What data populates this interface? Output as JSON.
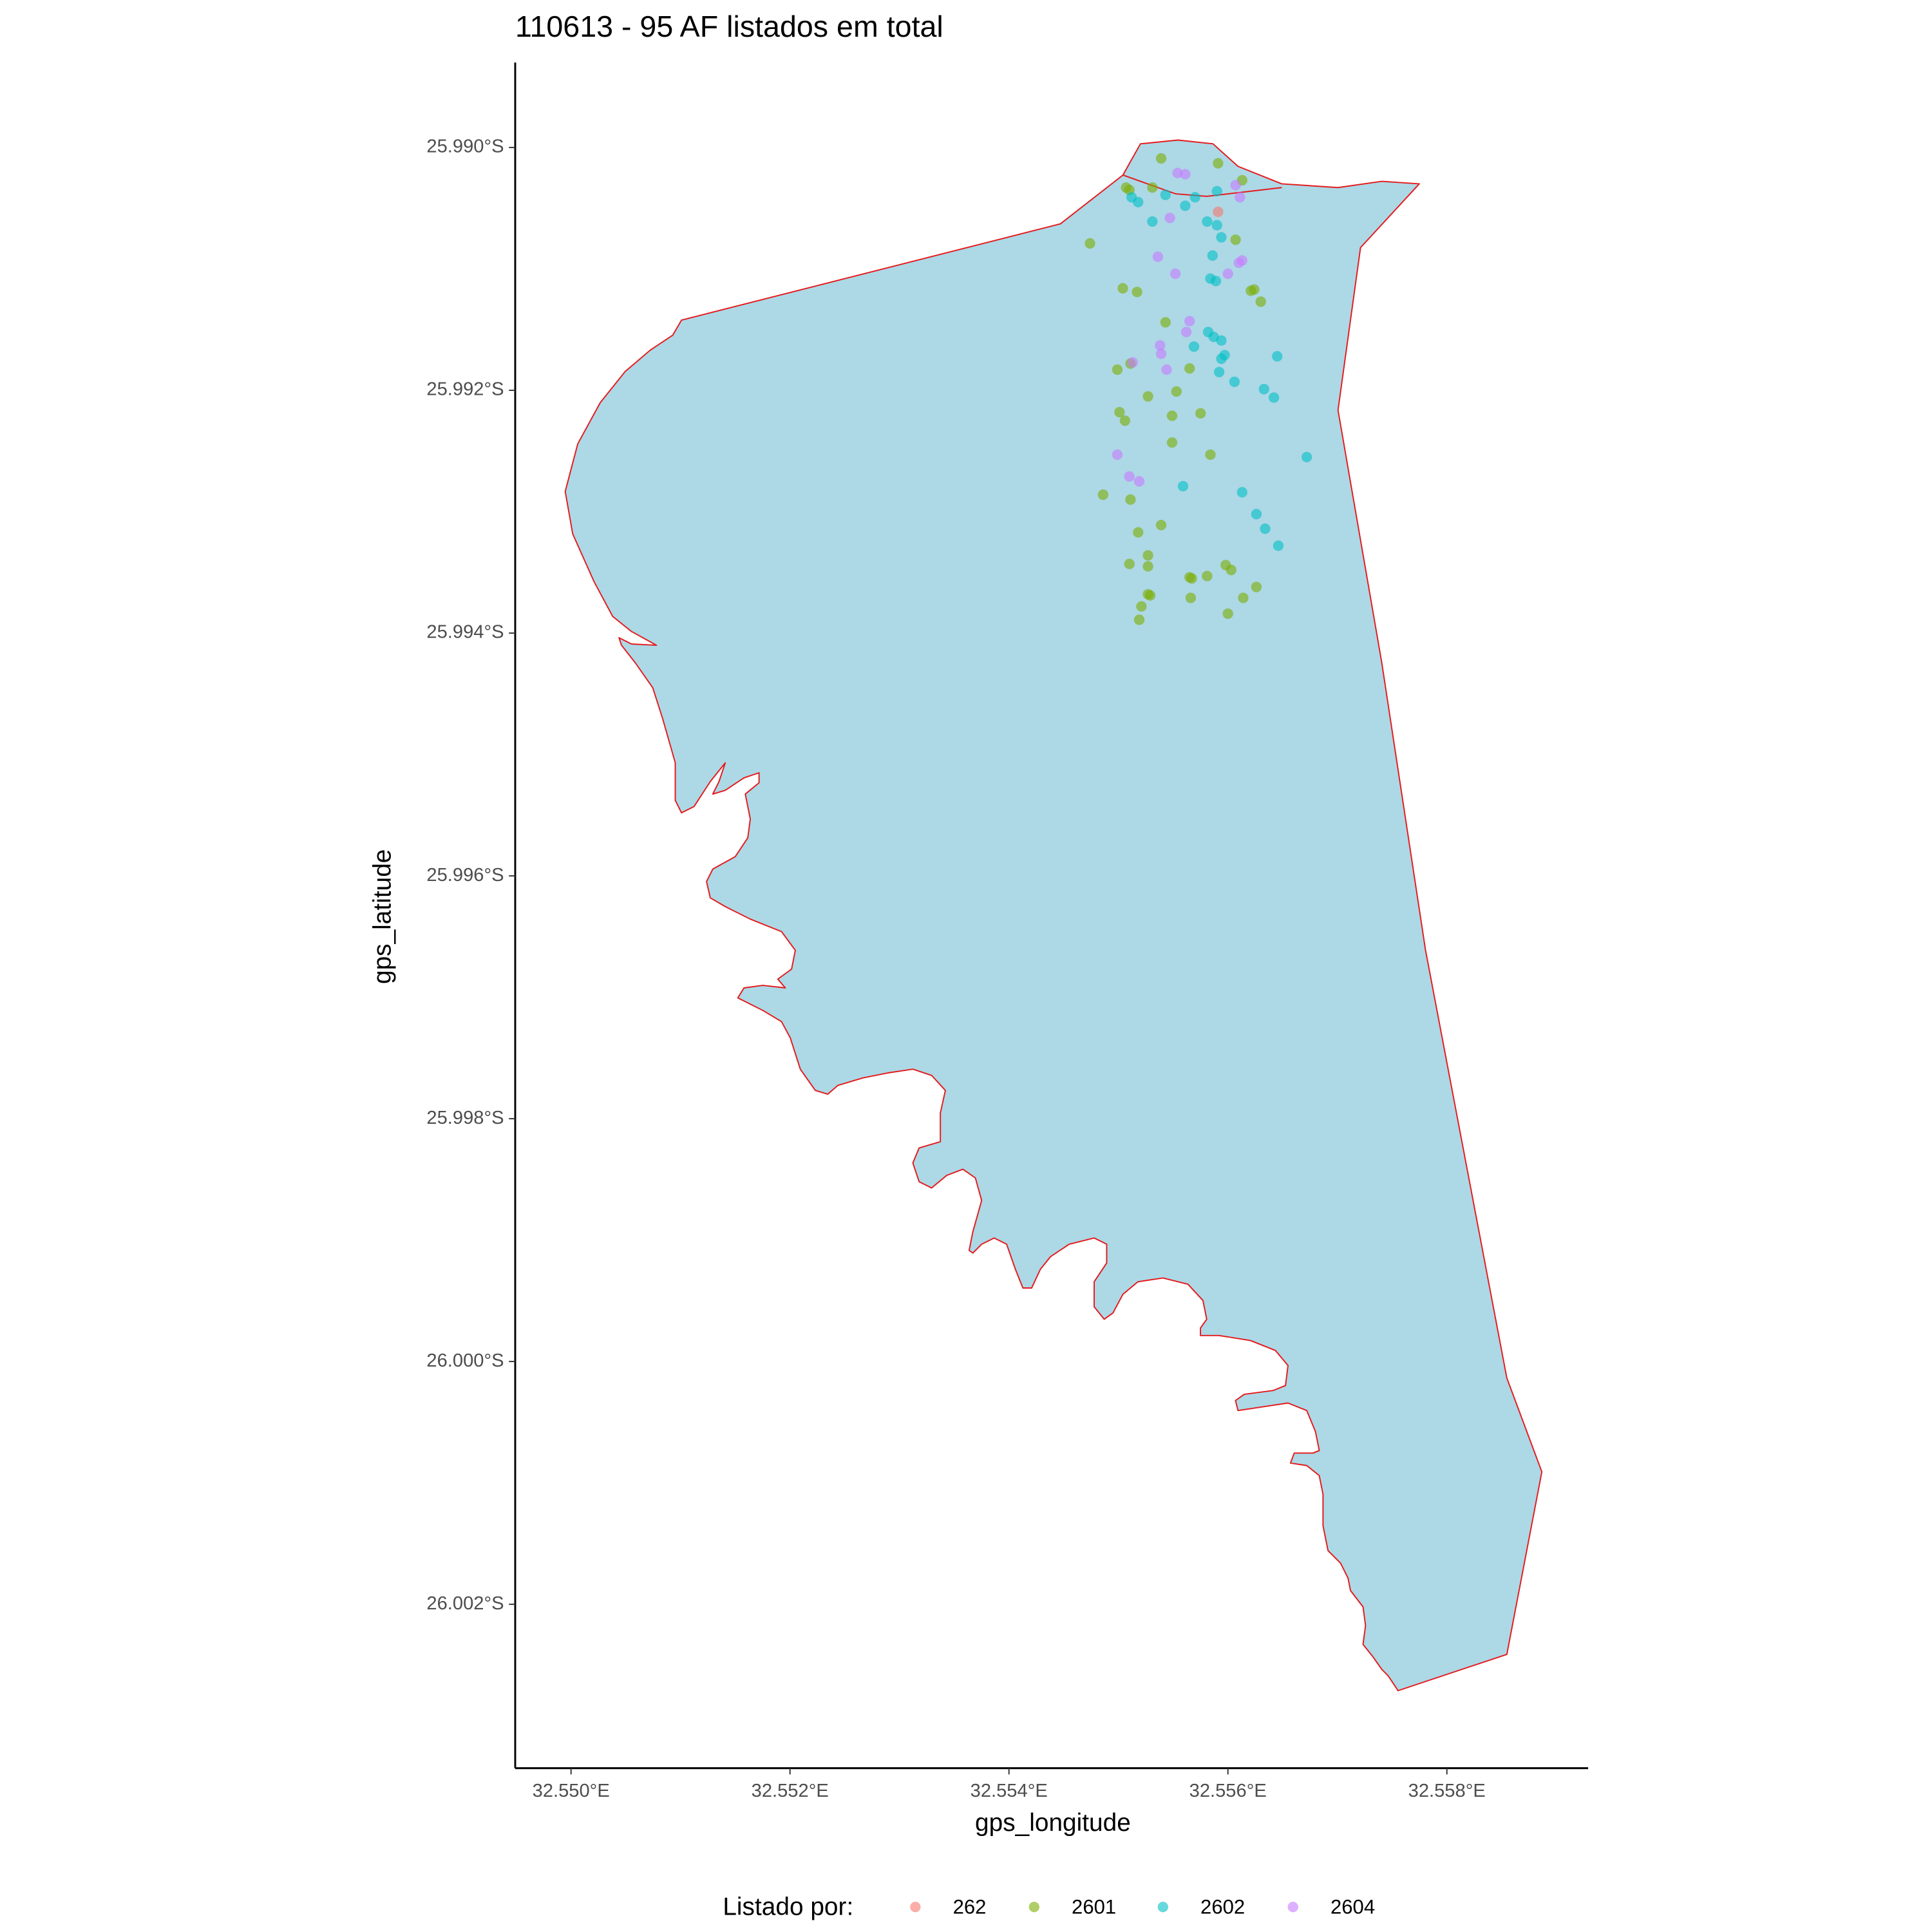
{
  "chart_data": {
    "type": "scatter",
    "title": "110613 - 95 AF listados em total",
    "x_label": "gps_longitude",
    "y_label": "gps_latitude",
    "legend_title": "Listado por:",
    "legend_position": "bottom",
    "xlim": [
      32.54949,
      32.55929
    ],
    "ylim": [
      -26.00335,
      -25.9893
    ],
    "xticks": [
      {
        "value": 32.55,
        "label": "32.550°E"
      },
      {
        "value": 32.552,
        "label": "32.552°E"
      },
      {
        "value": 32.554,
        "label": "32.554°E"
      },
      {
        "value": 32.556,
        "label": "32.556°E"
      },
      {
        "value": 32.558,
        "label": "32.558°E"
      }
    ],
    "yticks": [
      {
        "value": -25.99,
        "label": "25.990°S"
      },
      {
        "value": -25.992,
        "label": "25.992°S"
      },
      {
        "value": -25.994,
        "label": "25.994°S"
      },
      {
        "value": -25.996,
        "label": "25.996°S"
      },
      {
        "value": -25.998,
        "label": "25.998°S"
      },
      {
        "value": -26.0,
        "label": "26.000°S"
      },
      {
        "value": -26.002,
        "label": "26.002°S"
      }
    ],
    "series": [
      {
        "name": "262",
        "color": "#F8766D",
        "x": [
          32.55591
        ],
        "y": [
          -25.99053
        ]
      },
      {
        "name": "2601",
        "color": "#7CAE00",
        "x": [
          32.55539,
          32.55591,
          32.55613,
          32.55507,
          32.5551,
          32.55531,
          32.55607,
          32.55474,
          32.55504,
          32.55517,
          32.55621,
          32.55624,
          32.5563,
          32.55543,
          32.55499,
          32.55511,
          32.55565,
          32.55553,
          32.55527,
          32.55501,
          32.55506,
          32.55549,
          32.55575,
          32.55549,
          32.55584,
          32.55486,
          32.55511,
          32.55539,
          32.55518,
          32.55527,
          32.5551,
          32.55527,
          32.55565,
          32.55567,
          32.55581,
          32.55598,
          32.55603,
          32.55626,
          32.55527,
          32.55529,
          32.55566,
          32.55614,
          32.55521,
          32.55519,
          32.556
        ],
        "y": [
          -25.99009,
          -25.99013,
          -25.99027,
          -25.99033,
          -25.99035,
          -25.99033,
          -25.99076,
          -25.99079,
          -25.99116,
          -25.99119,
          -25.99118,
          -25.99117,
          -25.99127,
          -25.99144,
          -25.99183,
          -25.99178,
          -25.99182,
          -25.99201,
          -25.99205,
          -25.99218,
          -25.99225,
          -25.99221,
          -25.99219,
          -25.99243,
          -25.99253,
          -25.99286,
          -25.9929,
          -25.99311,
          -25.99317,
          -25.99336,
          -25.99343,
          -25.99345,
          -25.99354,
          -25.99355,
          -25.99353,
          -25.99344,
          -25.99348,
          -25.99362,
          -25.99368,
          -25.99369,
          -25.99371,
          -25.99371,
          -25.99378,
          -25.99389,
          -25.99384
        ]
      },
      {
        "name": "2602",
        "color": "#00BFC4",
        "x": [
          32.55512,
          32.55518,
          32.55543,
          32.5557,
          32.5559,
          32.55561,
          32.55531,
          32.55581,
          32.5559,
          32.55594,
          32.55586,
          32.55584,
          32.55589,
          32.55582,
          32.55587,
          32.55594,
          32.55569,
          32.55597,
          32.55594,
          32.55645,
          32.55592,
          32.55606,
          32.55633,
          32.55642,
          32.55672,
          32.55559,
          32.55613,
          32.55626,
          32.55634,
          32.55646
        ],
        "y": [
          -25.99041,
          -25.99045,
          -25.99039,
          -25.99041,
          -25.99036,
          -25.99048,
          -25.99061,
          -25.99061,
          -25.99064,
          -25.99074,
          -25.99089,
          -25.99108,
          -25.9911,
          -25.99152,
          -25.99156,
          -25.99159,
          -25.99164,
          -25.99171,
          -25.99174,
          -25.99172,
          -25.99185,
          -25.99193,
          -25.99199,
          -25.99206,
          -25.99255,
          -25.99279,
          -25.99284,
          -25.99302,
          -25.99314,
          -25.99328
        ]
      },
      {
        "name": "2604",
        "color": "#C77CFF",
        "x": [
          32.55554,
          32.55561,
          32.55607,
          32.55611,
          32.55547,
          32.55536,
          32.55613,
          32.5561,
          32.55552,
          32.556,
          32.55565,
          32.55562,
          32.55538,
          32.55539,
          32.55513,
          32.55544,
          32.55499,
          32.5551,
          32.55519
        ],
        "y": [
          -25.99021,
          -25.99022,
          -25.99031,
          -25.99041,
          -25.99058,
          -25.9909,
          -25.99093,
          -25.99095,
          -25.99104,
          -25.99104,
          -25.99143,
          -25.99152,
          -25.99163,
          -25.9917,
          -25.99177,
          -25.99183,
          -25.99253,
          -25.99271,
          -25.99275
        ]
      }
    ]
  }
}
